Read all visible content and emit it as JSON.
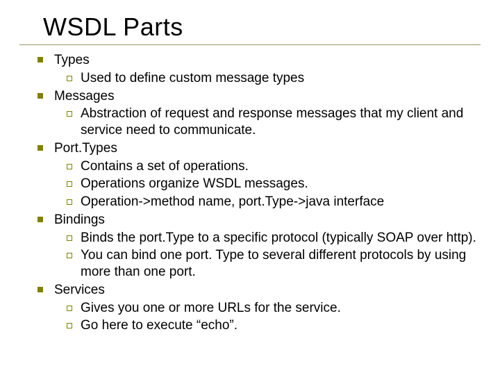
{
  "title": "WSDL Parts",
  "colors": {
    "bullet_l1": "#808000",
    "bullet_l2_border": "#808000",
    "title_underline": "#999966",
    "text": "#000000",
    "background": "#ffffff"
  },
  "typography": {
    "title_fontsize": 36,
    "body_fontsize": 19,
    "font_family": "Arial"
  },
  "items": [
    {
      "label": "Types",
      "sub": [
        "Used to define custom message types"
      ]
    },
    {
      "label": "Messages",
      "sub": [
        "Abstraction of request and response messages that my client and service need to communicate."
      ]
    },
    {
      "label": "Port.Types",
      "sub": [
        "Contains a set of operations.",
        "Operations organize WSDL messages.",
        "Operation->method name, port.Type->java interface"
      ]
    },
    {
      "label": "Bindings",
      "sub": [
        "Binds the port.Type to a specific protocol (typically SOAP over http).",
        "You can bind one port. Type to several different protocols by using more than one port."
      ]
    },
    {
      "label": "Services",
      "sub": [
        "Gives you one or more URLs for the service.",
        "Go here to execute “echo”."
      ]
    }
  ]
}
